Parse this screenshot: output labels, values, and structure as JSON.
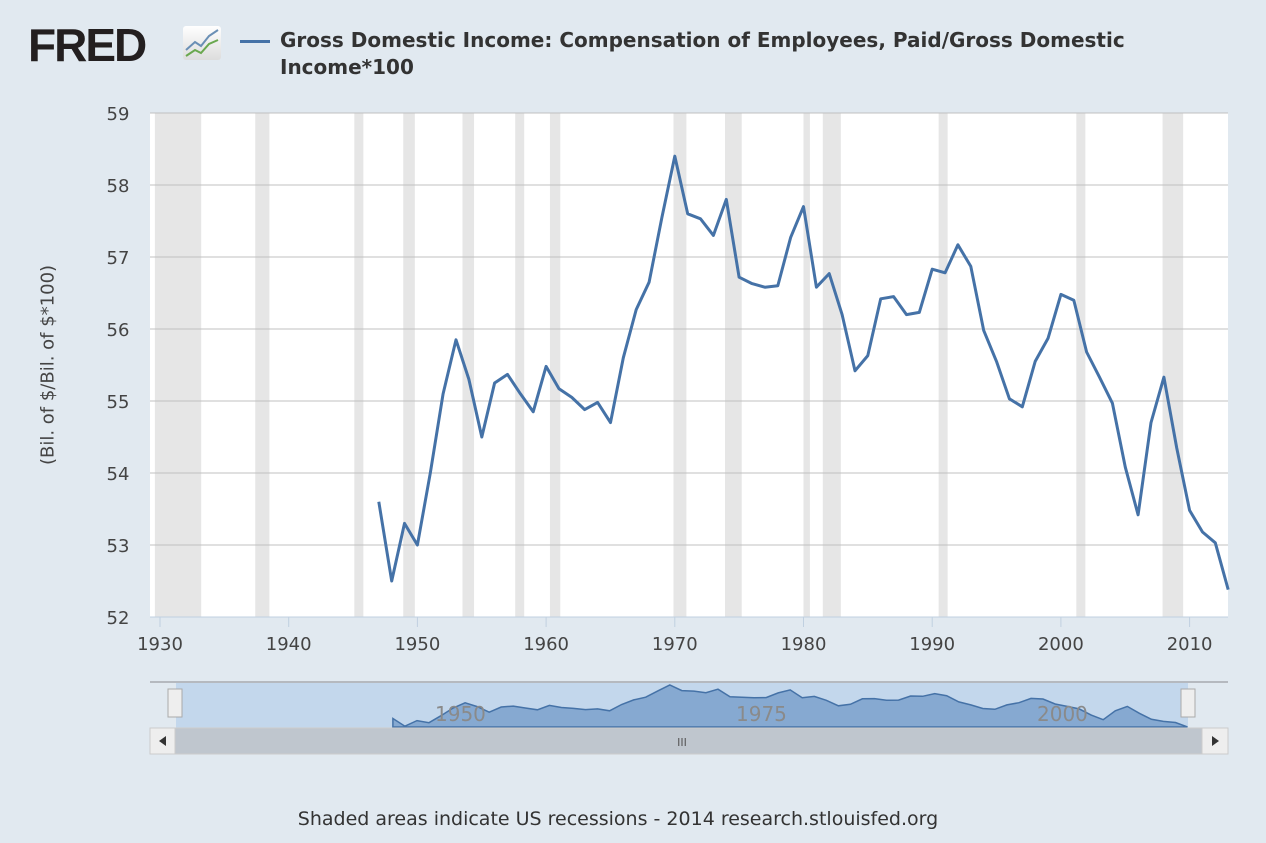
{
  "header": {
    "logo": "FRED",
    "title": "Gross Domestic Income: Compensation of Employees, Paid/Gross Domestic Income*100"
  },
  "footer": "Shaded areas indicate US recessions - 2014 research.stlouisfed.org",
  "colors": {
    "series": "#4572a7",
    "recession": "#e6e6e6",
    "background": "#e1e9f0"
  },
  "navigator": {
    "labels": [
      "1950",
      "1975",
      "2000"
    ],
    "scroll_handle": "III"
  },
  "chart_data": {
    "type": "line",
    "title": "Gross Domestic Income: Compensation of Employees, Paid/Gross Domestic Income*100",
    "ylabel": "(Bil. of $/Bil. of $*100)",
    "xlabel": "",
    "xlim": [
      1929.2,
      2013
    ],
    "ylim": [
      52,
      59
    ],
    "xticks": [
      1930,
      1940,
      1950,
      1960,
      1970,
      1980,
      1990,
      2000,
      2010
    ],
    "yticks": [
      52,
      53,
      54,
      55,
      56,
      57,
      58,
      59
    ],
    "grid": true,
    "series": [
      {
        "name": "Gross Domestic Income: Compensation of Employees, Paid/Gross Domestic Income*100",
        "x": [
          1947,
          1948,
          1949,
          1950,
          1951,
          1952,
          1953,
          1954,
          1955,
          1956,
          1957,
          1958,
          1959,
          1960,
          1961,
          1962,
          1963,
          1964,
          1965,
          1966,
          1967,
          1968,
          1969,
          1970,
          1971,
          1972,
          1973,
          1974,
          1975,
          1976,
          1977,
          1978,
          1979,
          1980,
          1981,
          1982,
          1983,
          1984,
          1985,
          1986,
          1987,
          1988,
          1989,
          1990,
          1991,
          1992,
          1993,
          1994,
          1995,
          1996,
          1997,
          1998,
          1999,
          2000,
          2001,
          2002,
          2003,
          2004,
          2005,
          2006,
          2007,
          2008,
          2009,
          2010,
          2011,
          2012,
          2013
        ],
        "values": [
          53.6,
          52.5,
          53.3,
          53.0,
          54.0,
          55.1,
          55.85,
          55.3,
          54.5,
          55.25,
          55.37,
          55.1,
          54.85,
          55.48,
          55.17,
          55.05,
          54.88,
          54.98,
          54.7,
          55.6,
          56.27,
          56.65,
          57.55,
          58.4,
          57.6,
          57.53,
          57.3,
          57.8,
          56.72,
          56.63,
          56.58,
          56.6,
          57.27,
          57.7,
          56.58,
          56.77,
          56.2,
          55.42,
          55.63,
          56.42,
          56.45,
          56.2,
          56.23,
          56.83,
          56.78,
          57.17,
          56.87,
          55.98,
          55.55,
          55.03,
          54.92,
          55.55,
          55.87,
          56.48,
          56.4,
          55.68,
          55.33,
          54.97,
          54.08,
          53.42,
          54.7,
          55.33,
          54.35,
          53.48,
          53.18,
          53.03,
          52.38
        ]
      }
    ],
    "recessions": [
      [
        1929.6,
        1933.2
      ],
      [
        1937.4,
        1938.5
      ],
      [
        1945.1,
        1945.8
      ],
      [
        1948.9,
        1949.8
      ],
      [
        1953.5,
        1954.4
      ],
      [
        1957.6,
        1958.3
      ],
      [
        1960.3,
        1961.1
      ],
      [
        1969.9,
        1970.9
      ],
      [
        1973.9,
        1975.2
      ],
      [
        1980.0,
        1980.5
      ],
      [
        1981.5,
        1982.9
      ],
      [
        1990.5,
        1991.2
      ],
      [
        2001.2,
        2001.9
      ],
      [
        2007.9,
        2009.5
      ]
    ],
    "legend": "top-left"
  }
}
